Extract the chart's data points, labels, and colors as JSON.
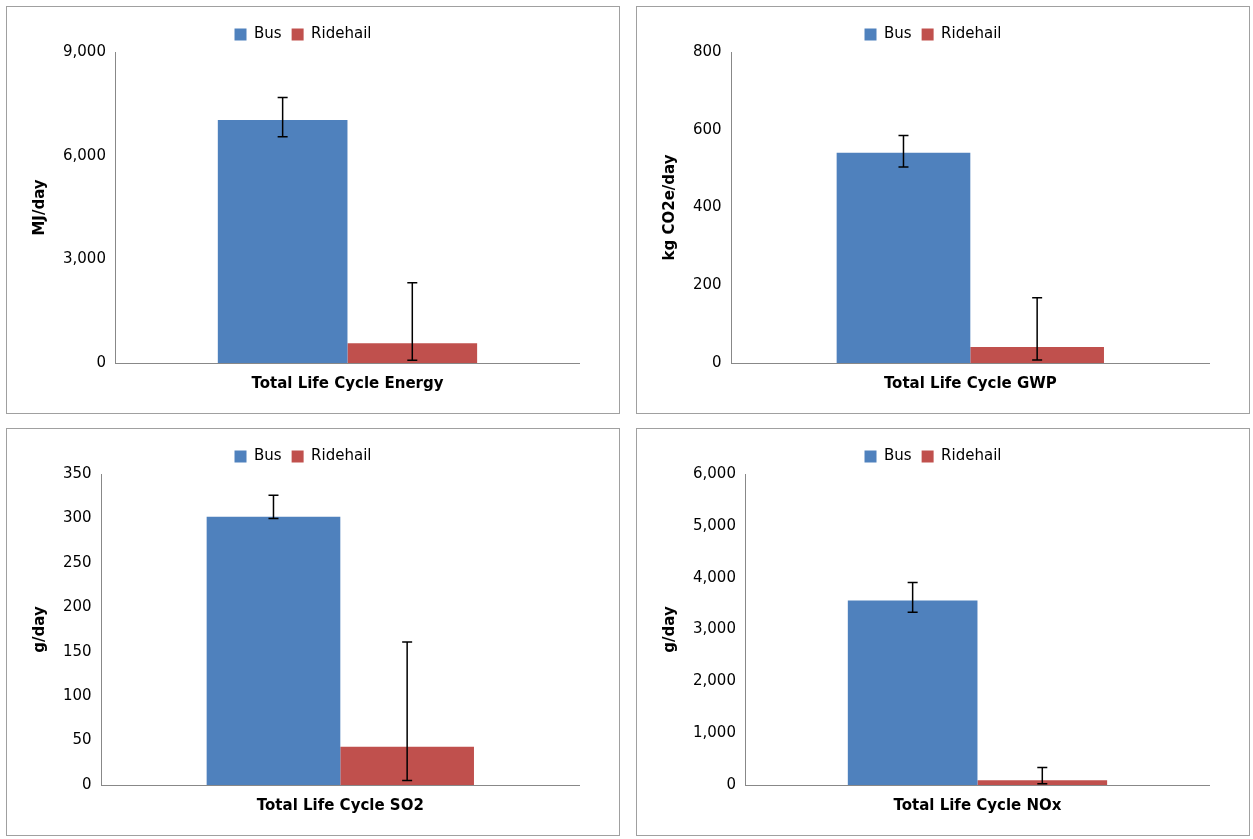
{
  "chart_data": [
    {
      "type": "bar",
      "categories": [
        "Total Life Cycle Energy"
      ],
      "ylabel": "MJ/day",
      "ylim": [
        0,
        9000
      ],
      "yticks": [
        0,
        {
          "value": 3000,
          "label": "3,000"
        },
        {
          "value": 6000,
          "label": "6,000"
        },
        {
          "value": 9000,
          "label": "9,000"
        }
      ],
      "legend": "top",
      "series": [
        {
          "name": "Bus",
          "color": "#4f81bd",
          "values": [
            7030
          ],
          "errors": [
            [
              6550,
              7680
            ]
          ]
        },
        {
          "name": "Ridehail",
          "color": "#c0504d",
          "values": [
            570
          ],
          "errors": [
            [
              80,
              2320
            ]
          ]
        }
      ]
    },
    {
      "type": "bar",
      "categories": [
        "Total Life Cycle GWP"
      ],
      "ylabel": "kg CO2e/day",
      "ylim": [
        0,
        800
      ],
      "yticks": [
        0,
        200,
        400,
        600,
        800
      ],
      "legend": "top",
      "series": [
        {
          "name": "Bus",
          "color": "#4f81bd",
          "values": [
            541
          ],
          "errors": [
            [
              504,
              585
            ]
          ]
        },
        {
          "name": "Ridehail",
          "color": "#c0504d",
          "values": [
            41
          ],
          "errors": [
            [
              8,
              168
            ]
          ]
        }
      ]
    },
    {
      "type": "bar",
      "categories": [
        "Total Life Cycle SO2"
      ],
      "ylabel": "g/day",
      "ylim": [
        0,
        350
      ],
      "yticks": [
        0,
        50,
        100,
        150,
        200,
        250,
        300,
        350
      ],
      "legend": "top",
      "series": [
        {
          "name": "Bus",
          "color": "#4f81bd",
          "values": [
            302
          ],
          "errors": [
            [
              300,
              326
            ]
          ]
        },
        {
          "name": "Ridehail",
          "color": "#c0504d",
          "values": [
            43
          ],
          "errors": [
            [
              5,
              161
            ]
          ]
        }
      ]
    },
    {
      "type": "bar",
      "categories": [
        "Total Life Cycle NOx"
      ],
      "ylabel": "g/day",
      "ylim": [
        0,
        6000
      ],
      "yticks": [
        0,
        {
          "value": 1000,
          "label": "1,000"
        },
        {
          "value": 2000,
          "label": "2,000"
        },
        {
          "value": 3000,
          "label": "3,000"
        },
        {
          "value": 4000,
          "label": "4,000"
        },
        {
          "value": 5000,
          "label": "5,000"
        },
        {
          "value": 6000,
          "label": "6,000"
        }
      ],
      "legend": "top",
      "series": [
        {
          "name": "Bus",
          "color": "#4f81bd",
          "values": [
            3560
          ],
          "errors": [
            [
              3333,
              3905
            ]
          ]
        },
        {
          "name": "Ridehail",
          "color": "#c0504d",
          "values": [
            90
          ],
          "errors": [
            [
              23,
              336
            ]
          ]
        }
      ]
    }
  ]
}
